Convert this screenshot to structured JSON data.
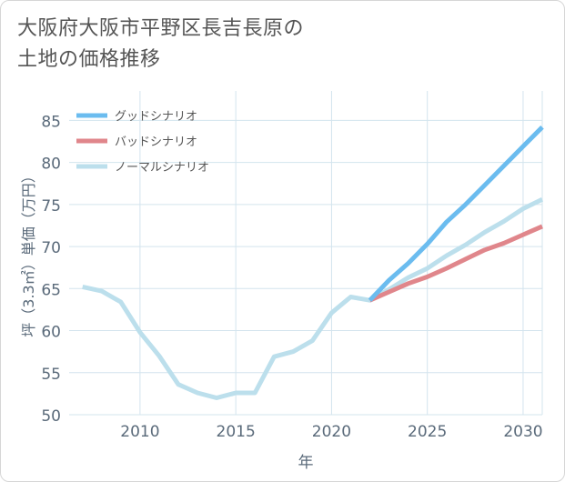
{
  "title": {
    "line1": "大阪府大阪市平野区長吉長原の",
    "line2": "土地の価格推移"
  },
  "colors": {
    "good": "#6bbcef",
    "bad": "#e0868b",
    "normal": "#bcdfec",
    "grid": "#d3e4ee",
    "axis_text": "#5a6a7a",
    "plot_bg": "#ffffff"
  },
  "chart_data": {
    "type": "line",
    "xlabel": "年",
    "ylabel": "坪（3.3㎡）単価（万円）",
    "xlim": [
      2006.3,
      2031
    ],
    "ylim": [
      50,
      88.5
    ],
    "x_ticks": [
      2010,
      2015,
      2020,
      2025,
      2030
    ],
    "y_ticks": [
      50,
      55,
      60,
      65,
      70,
      75,
      80,
      85
    ],
    "grid": true,
    "legend_position": "top-left",
    "series": [
      {
        "name": "グッドシナリオ",
        "color": "#6bbcef",
        "x": [
          2022,
          2023,
          2024,
          2025,
          2026,
          2027,
          2028,
          2029,
          2030,
          2031
        ],
        "y": [
          63.6,
          66.0,
          68.0,
          70.3,
          72.9,
          75.0,
          77.3,
          79.6,
          81.9,
          84.2
        ]
      },
      {
        "name": "バッドシナリオ",
        "color": "#e0868b",
        "x": [
          2022,
          2023,
          2024,
          2025,
          2026,
          2027,
          2028,
          2029,
          2030,
          2031
        ],
        "y": [
          63.6,
          64.6,
          65.6,
          66.4,
          67.4,
          68.5,
          69.6,
          70.4,
          71.4,
          72.4
        ]
      },
      {
        "name": "ノーマルシナリオ",
        "color": "#bcdfec",
        "x": [
          2007,
          2008,
          2009,
          2010,
          2011,
          2012,
          2013,
          2014,
          2015,
          2016,
          2017,
          2018,
          2019,
          2020,
          2021,
          2022,
          2023,
          2024,
          2025,
          2026,
          2027,
          2028,
          2029,
          2030,
          2031
        ],
        "y": [
          65.2,
          64.7,
          63.4,
          59.8,
          57.0,
          53.6,
          52.6,
          52.0,
          52.6,
          52.6,
          56.9,
          57.5,
          58.8,
          62.1,
          64.0,
          63.6,
          64.9,
          66.3,
          67.4,
          68.9,
          70.2,
          71.7,
          73.0,
          74.5,
          75.6
        ]
      }
    ]
  }
}
